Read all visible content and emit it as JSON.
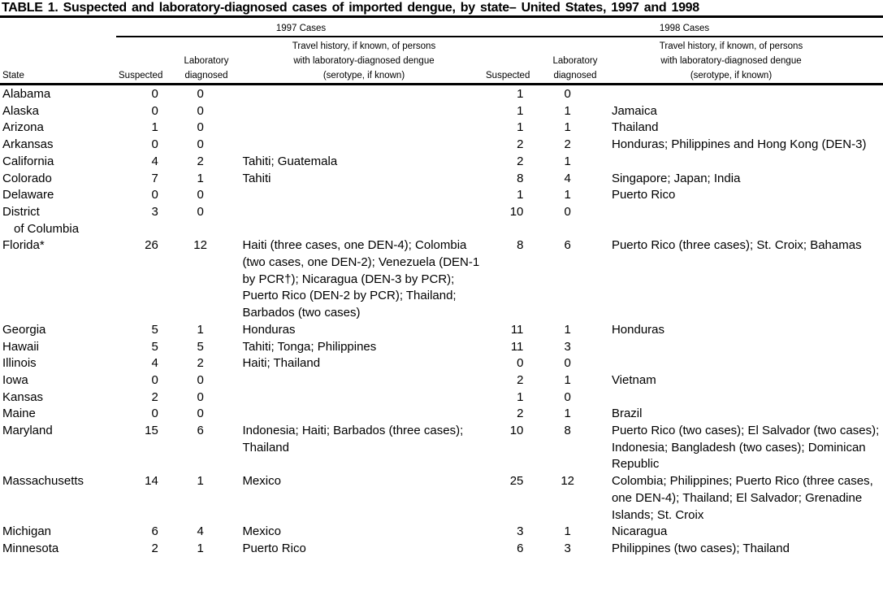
{
  "title": "TABLE 1. Suspected and laboratory-diagnosed cases of imported dengue, by state– United States, 1997 and 1998",
  "groups": {
    "y1997": "1997 Cases",
    "y1998": "1998 Cases"
  },
  "columns": {
    "state": "State",
    "suspected": "Suspected",
    "lab_line1": "Laboratory",
    "lab_line2": "diagnosed",
    "travel_line1": "Travel history, if known, of persons",
    "travel_line2": "with laboratory-diagnosed dengue",
    "travel_line3": "(serotype, if known)"
  },
  "rows": [
    {
      "state": "Alabama",
      "s97": "0",
      "l97": "0",
      "t97": "",
      "s98": "1",
      "l98": "0",
      "t98": ""
    },
    {
      "state": "Alaska",
      "s97": "0",
      "l97": "0",
      "t97": "",
      "s98": "1",
      "l98": "1",
      "t98": "Jamaica"
    },
    {
      "state": "Arizona",
      "s97": "1",
      "l97": "0",
      "t97": "",
      "s98": "1",
      "l98": "1",
      "t98": "Thailand"
    },
    {
      "state": "Arkansas",
      "s97": "0",
      "l97": "0",
      "t97": "",
      "s98": "2",
      "l98": "2",
      "t98": "Honduras; Philippines and Hong Kong (DEN-3)"
    },
    {
      "state": "California",
      "s97": "4",
      "l97": "2",
      "t97": "Tahiti; Guatemala",
      "s98": "2",
      "l98": "1",
      "t98": ""
    },
    {
      "state": "Colorado",
      "s97": "7",
      "l97": "1",
      "t97": "Tahiti",
      "s98": "8",
      "l98": "4",
      "t98": "Singapore; Japan; India"
    },
    {
      "state": "Delaware",
      "s97": "0",
      "l97": "0",
      "t97": "",
      "s98": "1",
      "l98": "1",
      "t98": "Puerto Rico"
    },
    {
      "state": "District of Columbia",
      "s97": "3",
      "l97": "0",
      "t97": "",
      "s98": "10",
      "l98": "0",
      "t98": ""
    },
    {
      "state": "Florida*",
      "s97": "26",
      "l97": "12",
      "t97": "Haiti (three cases, one DEN-4); Colombia (two cases, one DEN-2); Venezuela (DEN-1 by PCR†); Nicaragua (DEN-3 by PCR); Puerto Rico (DEN-2 by PCR); Thailand; Barbados (two cases)",
      "s98": "8",
      "l98": "6",
      "t98": "Puerto Rico (three cases); St. Croix; Bahamas"
    },
    {
      "state": "Georgia",
      "s97": "5",
      "l97": "1",
      "t97": "Honduras",
      "s98": "11",
      "l98": "1",
      "t98": "Honduras"
    },
    {
      "state": "Hawaii",
      "s97": "5",
      "l97": "5",
      "t97": "Tahiti; Tonga; Philippines",
      "s98": "11",
      "l98": "3",
      "t98": ""
    },
    {
      "state": "Illinois",
      "s97": "4",
      "l97": "2",
      "t97": "Haiti; Thailand",
      "s98": "0",
      "l98": "0",
      "t98": ""
    },
    {
      "state": "Iowa",
      "s97": "0",
      "l97": "0",
      "t97": "",
      "s98": "2",
      "l98": "1",
      "t98": "Vietnam"
    },
    {
      "state": "Kansas",
      "s97": "2",
      "l97": "0",
      "t97": "",
      "s98": "1",
      "l98": "0",
      "t98": ""
    },
    {
      "state": "Maine",
      "s97": "0",
      "l97": "0",
      "t97": "",
      "s98": "2",
      "l98": "1",
      "t98": "Brazil"
    },
    {
      "state": "Maryland",
      "s97": "15",
      "l97": "6",
      "t97": "Indonesia; Haiti; Barbados (three cases); Thailand",
      "s98": "10",
      "l98": "8",
      "t98": "Puerto Rico (two cases); El Salvador (two cases); Indonesia; Bangladesh (two cases); Dominican Republic"
    },
    {
      "state": "Massachusetts",
      "s97": "14",
      "l97": "1",
      "t97": "Mexico",
      "s98": "25",
      "l98": "12",
      "t98": "Colombia; Philippines; Puerto Rico (three cases, one DEN-4); Thailand; El Salvador; Grenadine Islands; St. Croix"
    },
    {
      "state": "Michigan",
      "s97": "6",
      "l97": "4",
      "t97": "Mexico",
      "s98": "3",
      "l98": "1",
      "t98": "Nicaragua"
    },
    {
      "state": "Minnesota",
      "s97": "2",
      "l97": "1",
      "t97": "Puerto Rico",
      "s98": "6",
      "l98": "3",
      "t98": "Philippines (two cases); Thailand"
    }
  ]
}
